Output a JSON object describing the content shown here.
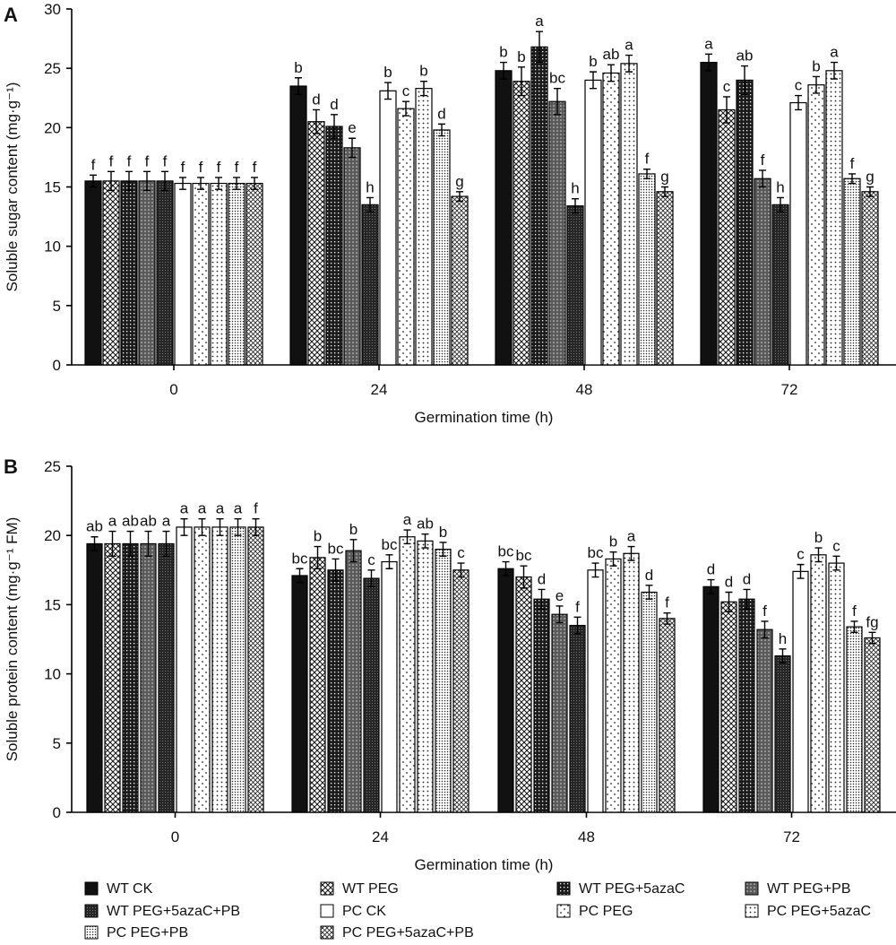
{
  "legend": [
    {
      "name": "WT CK",
      "pattern": "solid-black"
    },
    {
      "name": "WT PEG",
      "pattern": "diamond-grid"
    },
    {
      "name": "WT PEG+5azaC",
      "pattern": "dark-dots"
    },
    {
      "name": "WT PEG+PB",
      "pattern": "grey-dots"
    },
    {
      "name": "WT PEG+5azaC+PB",
      "pattern": "dark-fine"
    },
    {
      "name": "PC CK",
      "pattern": "white"
    },
    {
      "name": "PC PEG",
      "pattern": "sparse-dots"
    },
    {
      "name": "PC PEG+5azaC",
      "pattern": "medium-dots"
    },
    {
      "name": "PC PEG+PB",
      "pattern": "dense-dots"
    },
    {
      "name": "PC PEG+5azaC+PB",
      "pattern": "crosshatch"
    }
  ],
  "chart_data": [
    {
      "type": "bar",
      "panel": "A",
      "xlabel": "Germination time (h)",
      "ylabel": "Soluble sugar content (mg·g⁻¹)",
      "ylim": [
        0,
        30
      ],
      "yticks": [
        0,
        5,
        10,
        15,
        20,
        25,
        30
      ],
      "categories": [
        "0",
        "24",
        "48",
        "72"
      ],
      "series": [
        {
          "name": "WT CK",
          "values": [
            15.5,
            23.5,
            24.8,
            25.5
          ],
          "errors": [
            0.5,
            0.7,
            0.7,
            0.7
          ],
          "labels": [
            "f",
            "b",
            "b",
            "a"
          ]
        },
        {
          "name": "WT PEG",
          "values": [
            15.5,
            20.5,
            23.9,
            21.5
          ],
          "errors": [
            0.8,
            1.0,
            1.2,
            1.1
          ],
          "labels": [
            "f",
            "d",
            "b",
            "c"
          ]
        },
        {
          "name": "WT PEG+5azaC",
          "values": [
            15.5,
            20.1,
            26.8,
            24.0
          ],
          "errors": [
            0.8,
            1.0,
            1.3,
            1.2
          ],
          "labels": [
            "f",
            "d",
            "a",
            "ab"
          ]
        },
        {
          "name": "WT PEG+PB",
          "values": [
            15.5,
            18.3,
            22.2,
            15.7
          ],
          "errors": [
            0.8,
            0.8,
            1.1,
            0.7
          ],
          "labels": [
            "f",
            "e",
            "bc",
            "f"
          ]
        },
        {
          "name": "WT PEG+5azaC+PB",
          "values": [
            15.5,
            13.5,
            13.4,
            13.5
          ],
          "errors": [
            0.8,
            0.6,
            0.6,
            0.6
          ],
          "labels": [
            "f",
            "h",
            "h",
            "h"
          ]
        },
        {
          "name": "PC CK",
          "values": [
            15.3,
            23.1,
            24.0,
            22.1
          ],
          "errors": [
            0.5,
            0.7,
            0.7,
            0.6
          ],
          "labels": [
            "f",
            "b",
            "b",
            "c"
          ]
        },
        {
          "name": "PC PEG",
          "values": [
            15.3,
            21.6,
            24.6,
            23.6
          ],
          "errors": [
            0.5,
            0.6,
            0.7,
            0.7
          ],
          "labels": [
            "f",
            "c",
            "ab",
            "b"
          ]
        },
        {
          "name": "PC PEG+5azaC",
          "values": [
            15.3,
            23.3,
            25.4,
            24.8
          ],
          "errors": [
            0.5,
            0.6,
            0.7,
            0.7
          ],
          "labels": [
            "f",
            "b",
            "a",
            "a"
          ]
        },
        {
          "name": "PC PEG+PB",
          "values": [
            15.3,
            19.8,
            16.1,
            15.7
          ],
          "errors": [
            0.5,
            0.5,
            0.4,
            0.4
          ],
          "labels": [
            "f",
            "d",
            "f",
            "f"
          ]
        },
        {
          "name": "PC PEG+5azaC+PB",
          "values": [
            15.3,
            14.2,
            14.6,
            14.6
          ],
          "errors": [
            0.5,
            0.4,
            0.4,
            0.4
          ],
          "labels": [
            "f",
            "g",
            "g",
            "g"
          ]
        }
      ]
    },
    {
      "type": "bar",
      "panel": "B",
      "xlabel": "Germination time (h)",
      "ylabel": "Soluble protein content (mg·g⁻¹ FM)",
      "ylim": [
        0,
        25
      ],
      "yticks": [
        0,
        5,
        10,
        15,
        20,
        25
      ],
      "categories": [
        "0",
        "24",
        "48",
        "72"
      ],
      "series": [
        {
          "name": "WT CK",
          "values": [
            19.4,
            17.1,
            17.6,
            16.3
          ],
          "errors": [
            0.5,
            0.5,
            0.5,
            0.5
          ],
          "labels": [
            "ab",
            "bc",
            "bc",
            "d"
          ]
        },
        {
          "name": "WT PEG",
          "values": [
            19.4,
            18.4,
            17.0,
            15.2
          ],
          "errors": [
            0.9,
            0.8,
            0.8,
            0.7
          ],
          "labels": [
            "a",
            "b",
            "bc",
            "d"
          ]
        },
        {
          "name": "WT PEG+5azaC",
          "values": [
            19.4,
            17.5,
            15.4,
            15.4
          ],
          "errors": [
            0.9,
            0.8,
            0.7,
            0.7
          ],
          "labels": [
            "ab",
            "bc",
            "d",
            "d"
          ]
        },
        {
          "name": "WT PEG+PB",
          "values": [
            19.4,
            18.9,
            14.3,
            13.2
          ],
          "errors": [
            0.9,
            0.8,
            0.6,
            0.6
          ],
          "labels": [
            "ab",
            "b",
            "e",
            "f"
          ]
        },
        {
          "name": "WT PEG+5azaC+PB",
          "values": [
            19.4,
            16.9,
            13.5,
            11.3
          ],
          "errors": [
            0.9,
            0.6,
            0.6,
            0.5
          ],
          "labels": [
            "a",
            "c",
            "f",
            "h"
          ]
        },
        {
          "name": "PC CK",
          "values": [
            20.6,
            18.1,
            17.5,
            17.4
          ],
          "errors": [
            0.6,
            0.5,
            0.5,
            0.5
          ],
          "labels": [
            "a",
            "bc",
            "bc",
            "c"
          ]
        },
        {
          "name": "PC PEG",
          "values": [
            20.6,
            19.9,
            18.3,
            18.6
          ],
          "errors": [
            0.6,
            0.5,
            0.5,
            0.5
          ],
          "labels": [
            "a",
            "a",
            "b",
            "b"
          ]
        },
        {
          "name": "PC PEG+5azaC",
          "values": [
            20.6,
            19.6,
            18.7,
            18.0
          ],
          "errors": [
            0.6,
            0.5,
            0.5,
            0.5
          ],
          "labels": [
            "a",
            "ab",
            "a",
            "c"
          ]
        },
        {
          "name": "PC PEG+PB",
          "values": [
            20.6,
            19.0,
            15.9,
            13.4
          ],
          "errors": [
            0.6,
            0.5,
            0.5,
            0.4
          ],
          "labels": [
            "a",
            "b",
            "d",
            "f"
          ]
        },
        {
          "name": "PC PEG+5azaC+PB",
          "values": [
            20.6,
            17.5,
            14.0,
            12.6
          ],
          "errors": [
            0.6,
            0.5,
            0.4,
            0.4
          ],
          "labels": [
            "f",
            "c",
            "f",
            "fg"
          ]
        }
      ]
    }
  ]
}
